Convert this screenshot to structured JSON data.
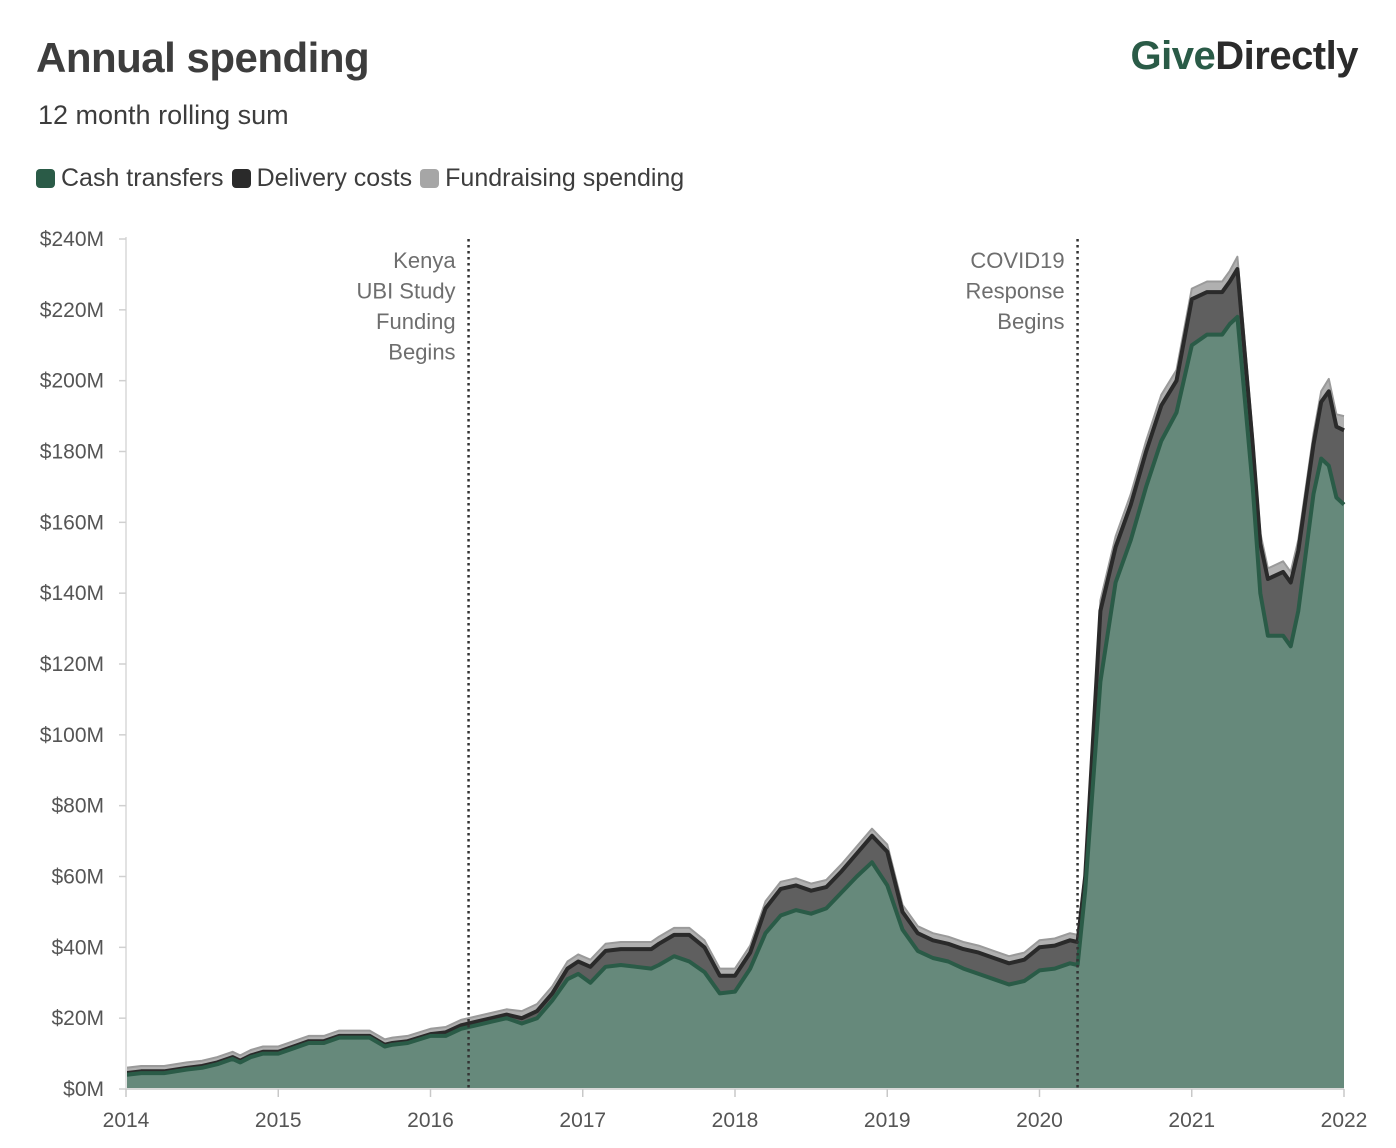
{
  "header": {
    "title": "Annual spending",
    "subtitle": "12 month rolling sum",
    "logo_give": "Give",
    "logo_directly": "Directly"
  },
  "colors": {
    "cash": "#66897b",
    "cash_line": "#2a5b47",
    "delivery": "#5f5f5f",
    "delivery_line": "#2a2a2a",
    "fundraising": "#b0b0b0",
    "annotation": "#333333"
  },
  "legend": [
    {
      "label": "Cash transfers",
      "color": "#2a5b47"
    },
    {
      "label": "Delivery costs",
      "color": "#2a2a2a"
    },
    {
      "label": "Fundraising spending",
      "color": "#a6a6a6"
    }
  ],
  "chart_data": {
    "type": "area",
    "stacked": true,
    "title": "Annual spending",
    "subtitle": "12 month rolling sum",
    "xlim": [
      2014,
      2022
    ],
    "ylim": [
      0,
      240
    ],
    "y_ticks": [
      "$0M",
      "$20M",
      "$40M",
      "$60M",
      "$80M",
      "$100M",
      "$120M",
      "$140M",
      "$160M",
      "$180M",
      "$200M",
      "$220M",
      "$240M"
    ],
    "x_ticks": [
      "2014",
      "2015",
      "2016",
      "2017",
      "2018",
      "2019",
      "2020",
      "2021",
      "2022"
    ],
    "legend_position": "top-left",
    "grid": false,
    "annotations": [
      {
        "x": 2016.25,
        "lines": [
          "Kenya",
          "UBI Study",
          "Funding",
          "Begins"
        ]
      },
      {
        "x": 2020.25,
        "lines": [
          "COVID19",
          "Response",
          "Begins"
        ]
      }
    ],
    "x": [
      2014.0,
      2014.1,
      2014.25,
      2014.4,
      2014.5,
      2014.6,
      2014.7,
      2014.75,
      2014.82,
      2014.9,
      2015.0,
      2015.1,
      2015.2,
      2015.3,
      2015.4,
      2015.5,
      2015.6,
      2015.7,
      2015.75,
      2015.85,
      2016.0,
      2016.1,
      2016.2,
      2016.3,
      2016.4,
      2016.5,
      2016.6,
      2016.7,
      2016.8,
      2016.9,
      2016.97,
      2017.05,
      2017.15,
      2017.25,
      2017.35,
      2017.45,
      2017.5,
      2017.6,
      2017.7,
      2017.8,
      2017.9,
      2018.0,
      2018.1,
      2018.2,
      2018.3,
      2018.4,
      2018.5,
      2018.6,
      2018.7,
      2018.8,
      2018.9,
      2019.0,
      2019.1,
      2019.2,
      2019.3,
      2019.4,
      2019.5,
      2019.6,
      2019.7,
      2019.8,
      2019.9,
      2020.0,
      2020.1,
      2020.2,
      2020.25,
      2020.3,
      2020.4,
      2020.5,
      2020.6,
      2020.7,
      2020.8,
      2020.9,
      2021.0,
      2021.1,
      2021.2,
      2021.25,
      2021.3,
      2021.4,
      2021.45,
      2021.5,
      2021.6,
      2021.65,
      2021.7,
      2021.8,
      2021.85,
      2021.9,
      2021.95,
      2022.0
    ],
    "series": [
      {
        "name": "Cash transfers",
        "values": [
          4,
          4.5,
          4.5,
          5.5,
          6,
          7,
          8.5,
          7.5,
          9,
          10,
          10,
          11.5,
          13,
          13,
          14.5,
          14.5,
          14.5,
          12,
          12.5,
          13,
          15,
          15,
          17,
          18,
          19,
          20,
          18.5,
          20,
          25,
          31,
          32.5,
          30,
          34.5,
          35,
          34.5,
          34,
          35,
          37.5,
          36,
          33,
          27,
          27.5,
          34,
          44,
          49,
          50.5,
          49.5,
          51,
          55.5,
          60,
          64,
          57.5,
          45,
          39,
          37,
          36,
          34,
          32.5,
          31,
          29.5,
          30.5,
          33.5,
          34,
          35.5,
          35,
          56,
          115,
          143,
          155,
          170,
          183,
          191,
          210,
          213,
          213,
          216,
          218,
          170,
          140,
          128,
          128,
          125,
          135,
          168,
          178,
          176,
          167,
          165
        ]
      },
      {
        "name": "Delivery costs",
        "values": [
          0.5,
          0.5,
          0.5,
          0.5,
          0.5,
          0.5,
          0.5,
          0.5,
          0.5,
          0.5,
          0.5,
          0.5,
          0.5,
          0.5,
          0.5,
          0.5,
          0.5,
          0.5,
          0.5,
          0.5,
          0.5,
          1,
          1,
          1,
          1,
          1,
          1.5,
          2,
          2,
          3,
          3.5,
          4.5,
          4.5,
          4.5,
          5,
          5.5,
          6,
          6,
          7.5,
          7,
          5,
          4.5,
          4.5,
          7,
          7.5,
          7,
          6.5,
          6,
          6,
          6.5,
          7.5,
          9.5,
          5,
          5,
          5,
          5,
          5.5,
          6,
          6,
          6,
          6,
          6.5,
          6.5,
          6.5,
          6.5,
          4,
          20,
          10,
          10,
          10,
          10,
          9,
          13,
          12,
          12,
          12,
          13.5,
          12,
          14,
          16,
          18,
          18,
          17,
          14,
          16,
          21,
          20,
          21
        ]
      },
      {
        "name": "Fundraising spending",
        "values": [
          1.5,
          1.5,
          1.5,
          1.5,
          1.5,
          1.5,
          1.5,
          1.5,
          1.5,
          1.5,
          1.5,
          1.5,
          1.5,
          1.5,
          1.5,
          1.5,
          1.5,
          1.5,
          1.5,
          1.5,
          1.5,
          1.5,
          1.5,
          1.5,
          1.5,
          1.5,
          2,
          2,
          2,
          2,
          2,
          2,
          2,
          2,
          2,
          2,
          2,
          2,
          2,
          2,
          2,
          2,
          2,
          2,
          2,
          2,
          2,
          2,
          2,
          2,
          2,
          2,
          2,
          2,
          2,
          2,
          2,
          2,
          2,
          2,
          2,
          2,
          2,
          2,
          2,
          2,
          3,
          3,
          3,
          3,
          3,
          3,
          3,
          3,
          3,
          3,
          3.5,
          3,
          3,
          3,
          3,
          3,
          3,
          3,
          3,
          3.5,
          3.5,
          4
        ]
      }
    ]
  }
}
